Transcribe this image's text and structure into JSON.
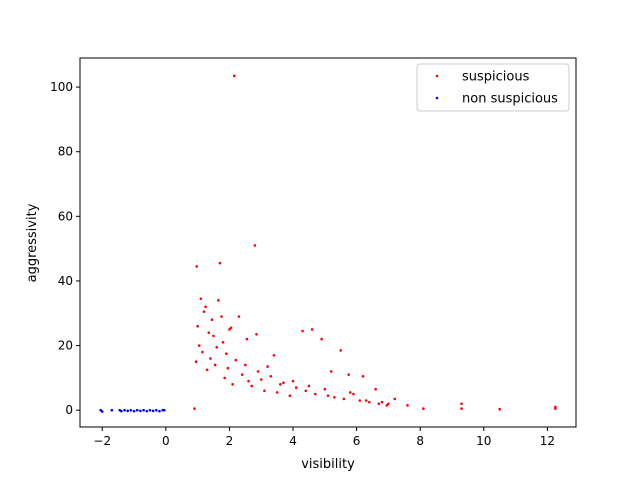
{
  "chart_data": {
    "type": "scatter",
    "title": "",
    "xlabel": "visibility",
    "ylabel": "aggressivity",
    "xlim": [
      -2.7,
      12.9
    ],
    "ylim": [
      -5.2,
      109.0
    ],
    "xticks": [
      -2,
      0,
      2,
      4,
      6,
      8,
      10,
      12
    ],
    "yticks": [
      0,
      20,
      40,
      60,
      80,
      100
    ],
    "grid": false,
    "legend": {
      "placement": "top-right",
      "entries": [
        "suspicious",
        "non suspicious"
      ]
    },
    "series": [
      {
        "name": "suspicious",
        "color": "#ff0000",
        "x": [
          2.15,
          2.8,
          0.97,
          1.7,
          1.1,
          1.25,
          1.45,
          1.65,
          1.0,
          1.2,
          1.35,
          1.5,
          1.75,
          2.05,
          2.3,
          2.55,
          2.85,
          3.4,
          4.3,
          4.6,
          4.9,
          5.2,
          5.5,
          5.75,
          6.2,
          6.6,
          7.2,
          7.6,
          8.1,
          9.3,
          9.3,
          10.5,
          12.25,
          12.25,
          0.9,
          0.95,
          1.05,
          1.15,
          1.3,
          1.4,
          1.55,
          1.6,
          1.85,
          1.95,
          2.1,
          2.2,
          2.4,
          2.6,
          2.7,
          2.9,
          3.1,
          3.3,
          3.5,
          3.7,
          3.9,
          4.1,
          4.4,
          4.7,
          5.0,
          5.3,
          5.6,
          5.9,
          6.1,
          6.4,
          6.7,
          6.95,
          3.0,
          2.5,
          1.9,
          1.8,
          3.2,
          3.6,
          4.0,
          4.5,
          5.1,
          5.8,
          6.3,
          6.8,
          7.0,
          2.0
        ],
        "y": [
          103.5,
          51.0,
          44.5,
          45.5,
          34.5,
          32.0,
          28.0,
          34.0,
          26.0,
          30.5,
          24.0,
          23.0,
          29.0,
          25.5,
          29.0,
          22.0,
          23.5,
          17.0,
          24.5,
          25.0,
          22.0,
          12.0,
          18.5,
          11.0,
          10.5,
          6.5,
          3.5,
          1.5,
          0.5,
          2.0,
          0.5,
          0.3,
          1.0,
          0.5,
          0.5,
          15.0,
          20.0,
          18.0,
          12.5,
          16.0,
          14.0,
          19.5,
          10.0,
          13.0,
          8.0,
          15.5,
          11.0,
          9.0,
          7.5,
          12.0,
          6.0,
          10.5,
          5.5,
          8.5,
          4.5,
          7.0,
          6.0,
          5.0,
          6.5,
          4.0,
          3.5,
          5.0,
          3.0,
          2.5,
          2.0,
          1.5,
          9.5,
          14.0,
          17.5,
          21.0,
          13.5,
          8.0,
          9.0,
          7.5,
          4.5,
          5.5,
          3.0,
          2.5,
          2.0,
          25.0
        ]
      },
      {
        "name": "non suspicious",
        "color": "#0000ff",
        "x": [
          -2.05,
          -2.0,
          -1.7,
          -1.45,
          -1.4,
          -1.3,
          -1.2,
          -1.1,
          -1.0,
          -0.9,
          -0.8,
          -0.7,
          -0.6,
          -0.5,
          -0.4,
          -0.3,
          -0.2,
          -0.1,
          -0.05
        ],
        "y": [
          0,
          -0.4,
          0,
          0,
          -0.3,
          0,
          -0.2,
          0,
          -0.3,
          0,
          -0.2,
          0,
          -0.3,
          0,
          -0.2,
          0,
          -0.3,
          0,
          0
        ]
      }
    ]
  }
}
